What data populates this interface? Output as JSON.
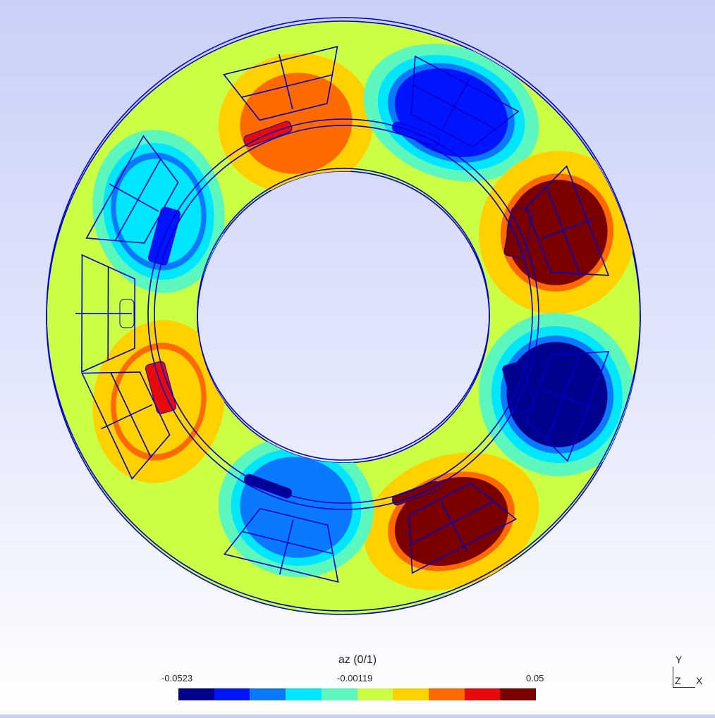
{
  "legend": {
    "title": "az (0/1)",
    "min_label": "-0.0523",
    "mid_label": "-0.00119",
    "max_label": "0.05",
    "colors": [
      "#00008f",
      "#0014ff",
      "#0a78ff",
      "#00e6ff",
      "#5cf7bd",
      "#caff45",
      "#ffd100",
      "#ff6a00",
      "#e60a0a",
      "#7a0000"
    ]
  },
  "axes": {
    "y": "Y",
    "z": "Z",
    "x": "X"
  },
  "background_field_color": "#caff45",
  "outline_color": "#0000c8",
  "poles": [
    {
      "name": "top-left",
      "color": "#ff6a00",
      "slot_color": "#e60a0a"
    },
    {
      "name": "top-right",
      "color": "#0014ff",
      "slot_color": "#0014ff"
    },
    {
      "name": "right-upper",
      "color": "#7a0000",
      "slot_color": "#7a0000"
    },
    {
      "name": "right-lower",
      "color": "#00008f",
      "slot_color": "#00008f"
    },
    {
      "name": "bottom-right",
      "color": "#7a0000",
      "slot_color": "#7a0000"
    },
    {
      "name": "bottom",
      "color": "#0a78ff",
      "slot_color": "#00008f"
    },
    {
      "name": "bottom-left",
      "color": "#ffd100",
      "slot_color": "#e60a0a"
    },
    {
      "name": "left",
      "color": "#caff45",
      "slot_color": "#caff45"
    },
    {
      "name": "top-left-upper",
      "color": "#00e6ff",
      "slot_color": "#0014ff"
    }
  ]
}
